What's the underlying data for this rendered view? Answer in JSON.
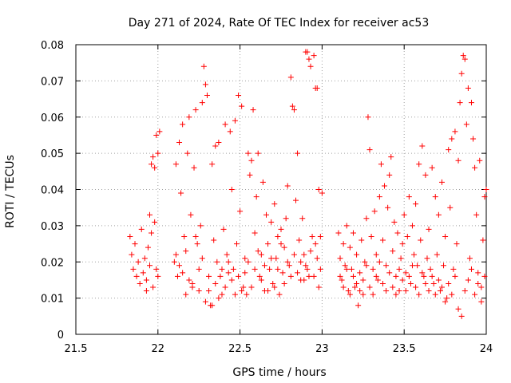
{
  "chart_data": {
    "type": "scatter",
    "title": "Day 271 of 2024, Rate Of TEC Index for receiver ac53",
    "xlabel": "GPS time / hours",
    "ylabel": "ROTI / TECUs",
    "xlim": [
      21.5,
      24
    ],
    "ylim": [
      0,
      0.08
    ],
    "x_ticks": [
      21.5,
      22,
      22.5,
      23,
      23.5,
      24
    ],
    "x_tick_labels": [
      "21.5",
      "22",
      "22.5",
      "23",
      "23.5",
      "24"
    ],
    "y_ticks": [
      0,
      0.01,
      0.02,
      0.03,
      0.04,
      0.05,
      0.06,
      0.07,
      0.08
    ],
    "y_tick_labels": [
      "0",
      "0.01",
      "0.02",
      "0.03",
      "0.04",
      "0.05",
      "0.06",
      "0.07",
      "0.08"
    ],
    "grid": true,
    "marker": "+",
    "color": "#ff0000",
    "series": [
      {
        "name": "ROTI",
        "points": [
          [
            21.83,
            0.027
          ],
          [
            21.84,
            0.022
          ],
          [
            21.85,
            0.018
          ],
          [
            21.86,
            0.025
          ],
          [
            21.87,
            0.016
          ],
          [
            21.88,
            0.02
          ],
          [
            21.89,
            0.014
          ],
          [
            21.9,
            0.029
          ],
          [
            21.91,
            0.017
          ],
          [
            21.92,
            0.021
          ],
          [
            21.93,
            0.015
          ],
          [
            21.94,
            0.024
          ],
          [
            21.95,
            0.019
          ],
          [
            21.96,
            0.028
          ],
          [
            21.97,
            0.013
          ],
          [
            21.98,
            0.031
          ],
          [
            21.99,
            0.018
          ],
          [
            22.0,
            0.016
          ],
          [
            21.96,
            0.047
          ],
          [
            21.97,
            0.049
          ],
          [
            21.98,
            0.046
          ],
          [
            21.99,
            0.055
          ],
          [
            22.0,
            0.05
          ],
          [
            22.01,
            0.056
          ],
          [
            21.95,
            0.033
          ],
          [
            21.93,
            0.012
          ],
          [
            22.1,
            0.02
          ],
          [
            22.11,
            0.047
          ],
          [
            22.12,
            0.016
          ],
          [
            22.13,
            0.053
          ],
          [
            22.14,
            0.039
          ],
          [
            22.15,
            0.058
          ],
          [
            22.16,
            0.027
          ],
          [
            22.17,
            0.011
          ],
          [
            22.18,
            0.05
          ],
          [
            22.19,
            0.06
          ],
          [
            22.2,
            0.033
          ],
          [
            22.21,
            0.014
          ],
          [
            22.22,
            0.046
          ],
          [
            22.23,
            0.062
          ],
          [
            22.24,
            0.025
          ],
          [
            22.25,
            0.018
          ],
          [
            22.26,
            0.03
          ],
          [
            22.27,
            0.064
          ],
          [
            22.28,
            0.074
          ],
          [
            22.29,
            0.069
          ],
          [
            22.3,
            0.066
          ],
          [
            22.31,
            0.012
          ],
          [
            22.32,
            0.008
          ],
          [
            22.33,
            0.047
          ],
          [
            22.34,
            0.026
          ],
          [
            22.35,
            0.052
          ],
          [
            22.36,
            0.02
          ],
          [
            22.37,
            0.053
          ],
          [
            22.38,
            0.016
          ],
          [
            22.39,
            0.011
          ],
          [
            22.4,
            0.029
          ],
          [
            22.41,
            0.058
          ],
          [
            22.42,
            0.022
          ],
          [
            22.43,
            0.017
          ],
          [
            22.44,
            0.056
          ],
          [
            22.45,
            0.04
          ],
          [
            22.46,
            0.018
          ],
          [
            22.47,
            0.059
          ],
          [
            22.48,
            0.025
          ],
          [
            22.49,
            0.066
          ],
          [
            22.5,
            0.034
          ],
          [
            22.51,
            0.063
          ],
          [
            22.52,
            0.013
          ],
          [
            22.53,
            0.021
          ],
          [
            22.54,
            0.011
          ],
          [
            22.55,
            0.05
          ],
          [
            22.56,
            0.044
          ],
          [
            22.57,
            0.048
          ],
          [
            22.58,
            0.062
          ],
          [
            22.59,
            0.028
          ],
          [
            22.6,
            0.038
          ],
          [
            22.61,
            0.05
          ],
          [
            22.62,
            0.016
          ],
          [
            22.63,
            0.022
          ],
          [
            22.64,
            0.042
          ],
          [
            22.65,
            0.012
          ],
          [
            22.66,
            0.033
          ],
          [
            22.67,
            0.025
          ],
          [
            22.68,
            0.018
          ],
          [
            22.69,
            0.031
          ],
          [
            22.7,
            0.014
          ],
          [
            22.71,
            0.036
          ],
          [
            22.72,
            0.021
          ],
          [
            22.73,
            0.027
          ],
          [
            22.74,
            0.011
          ],
          [
            22.75,
            0.029
          ],
          [
            22.76,
            0.017
          ],
          [
            22.77,
            0.024
          ],
          [
            22.78,
            0.032
          ],
          [
            22.79,
            0.041
          ],
          [
            22.8,
            0.019
          ],
          [
            22.81,
            0.071
          ],
          [
            22.82,
            0.063
          ],
          [
            22.83,
            0.062
          ],
          [
            22.84,
            0.037
          ],
          [
            22.85,
            0.05
          ],
          [
            22.86,
            0.026
          ],
          [
            22.87,
            0.015
          ],
          [
            22.88,
            0.032
          ],
          [
            22.89,
            0.022
          ],
          [
            22.9,
            0.078
          ],
          [
            22.91,
            0.078
          ],
          [
            22.92,
            0.076
          ],
          [
            22.93,
            0.074
          ],
          [
            22.94,
            0.027
          ],
          [
            22.95,
            0.077
          ],
          [
            22.96,
            0.068
          ],
          [
            22.97,
            0.068
          ],
          [
            22.98,
            0.04
          ],
          [
            22.99,
            0.018
          ],
          [
            23.0,
            0.039
          ],
          [
            22.96,
            0.025
          ],
          [
            22.98,
            0.013
          ],
          [
            22.97,
            0.021
          ],
          [
            22.99,
            0.027
          ],
          [
            22.92,
            0.016
          ],
          [
            22.9,
            0.019
          ],
          [
            22.11,
            0.022
          ],
          [
            22.13,
            0.019
          ],
          [
            22.15,
            0.017
          ],
          [
            22.17,
            0.023
          ],
          [
            22.19,
            0.015
          ],
          [
            22.21,
            0.013
          ],
          [
            22.23,
            0.027
          ],
          [
            22.25,
            0.012
          ],
          [
            22.27,
            0.021
          ],
          [
            22.29,
            0.009
          ],
          [
            22.31,
            0.016
          ],
          [
            22.33,
            0.008
          ],
          [
            22.35,
            0.014
          ],
          [
            22.37,
            0.01
          ],
          [
            22.39,
            0.018
          ],
          [
            22.41,
            0.013
          ],
          [
            22.43,
            0.02
          ],
          [
            22.45,
            0.015
          ],
          [
            22.47,
            0.011
          ],
          [
            22.49,
            0.016
          ],
          [
            22.51,
            0.012
          ],
          [
            22.53,
            0.017
          ],
          [
            22.55,
            0.02
          ],
          [
            22.57,
            0.013
          ],
          [
            22.59,
            0.018
          ],
          [
            22.61,
            0.023
          ],
          [
            22.63,
            0.015
          ],
          [
            22.65,
            0.019
          ],
          [
            22.67,
            0.012
          ],
          [
            22.69,
            0.021
          ],
          [
            22.71,
            0.013
          ],
          [
            22.73,
            0.018
          ],
          [
            22.75,
            0.025
          ],
          [
            22.77,
            0.014
          ],
          [
            22.79,
            0.02
          ],
          [
            22.81,
            0.016
          ],
          [
            22.83,
            0.022
          ],
          [
            22.85,
            0.017
          ],
          [
            22.87,
            0.02
          ],
          [
            22.89,
            0.015
          ],
          [
            22.91,
            0.018
          ],
          [
            22.93,
            0.023
          ],
          [
            22.95,
            0.016
          ],
          [
            23.1,
            0.028
          ],
          [
            23.11,
            0.021
          ],
          [
            23.12,
            0.015
          ],
          [
            23.13,
            0.025
          ],
          [
            23.14,
            0.019
          ],
          [
            23.15,
            0.03
          ],
          [
            23.16,
            0.012
          ],
          [
            23.17,
            0.024
          ],
          [
            23.18,
            0.018
          ],
          [
            23.19,
            0.028
          ],
          [
            23.2,
            0.013
          ],
          [
            23.21,
            0.022
          ],
          [
            23.22,
            0.008
          ],
          [
            23.23,
            0.017
          ],
          [
            23.24,
            0.026
          ],
          [
            23.25,
            0.011
          ],
          [
            23.26,
            0.02
          ],
          [
            23.27,
            0.032
          ],
          [
            23.28,
            0.06
          ],
          [
            23.29,
            0.051
          ],
          [
            23.3,
            0.027
          ],
          [
            23.31,
            0.018
          ],
          [
            23.32,
            0.034
          ],
          [
            23.33,
            0.022
          ],
          [
            23.34,
            0.015
          ],
          [
            23.35,
            0.038
          ],
          [
            23.36,
            0.047
          ],
          [
            23.37,
            0.026
          ],
          [
            23.38,
            0.041
          ],
          [
            23.39,
            0.019
          ],
          [
            23.4,
            0.035
          ],
          [
            23.41,
            0.044
          ],
          [
            23.42,
            0.049
          ],
          [
            23.43,
            0.023
          ],
          [
            23.44,
            0.031
          ],
          [
            23.45,
            0.016
          ],
          [
            23.46,
            0.028
          ],
          [
            23.47,
            0.012
          ],
          [
            23.48,
            0.021
          ],
          [
            23.49,
            0.025
          ],
          [
            23.5,
            0.033
          ],
          [
            23.51,
            0.017
          ],
          [
            23.52,
            0.027
          ],
          [
            23.53,
            0.038
          ],
          [
            23.54,
            0.014
          ],
          [
            23.55,
            0.03
          ],
          [
            23.56,
            0.022
          ],
          [
            23.57,
            0.036
          ],
          [
            23.58,
            0.019
          ],
          [
            23.59,
            0.047
          ],
          [
            23.6,
            0.026
          ],
          [
            23.61,
            0.052
          ],
          [
            23.62,
            0.016
          ],
          [
            23.63,
            0.044
          ],
          [
            23.64,
            0.021
          ],
          [
            23.65,
            0.029
          ],
          [
            23.66,
            0.018
          ],
          [
            23.67,
            0.046
          ],
          [
            23.68,
            0.014
          ],
          [
            23.69,
            0.038
          ],
          [
            23.7,
            0.022
          ],
          [
            23.71,
            0.033
          ],
          [
            23.72,
            0.012
          ],
          [
            23.73,
            0.042
          ],
          [
            23.74,
            0.019
          ],
          [
            23.75,
            0.027
          ],
          [
            23.76,
            0.01
          ],
          [
            23.77,
            0.051
          ],
          [
            23.78,
            0.035
          ],
          [
            23.79,
            0.054
          ],
          [
            23.8,
            0.018
          ],
          [
            23.81,
            0.056
          ],
          [
            23.82,
            0.025
          ],
          [
            23.83,
            0.048
          ],
          [
            23.84,
            0.064
          ],
          [
            23.85,
            0.072
          ],
          [
            23.86,
            0.077
          ],
          [
            23.87,
            0.076
          ],
          [
            23.88,
            0.058
          ],
          [
            23.89,
            0.068
          ],
          [
            23.9,
            0.021
          ],
          [
            23.91,
            0.064
          ],
          [
            23.92,
            0.054
          ],
          [
            23.93,
            0.046
          ],
          [
            23.94,
            0.033
          ],
          [
            23.95,
            0.017
          ],
          [
            23.96,
            0.048
          ],
          [
            23.97,
            0.013
          ],
          [
            23.98,
            0.026
          ],
          [
            23.99,
            0.038
          ],
          [
            24.0,
            0.04
          ],
          [
            23.11,
            0.016
          ],
          [
            23.13,
            0.013
          ],
          [
            23.15,
            0.018
          ],
          [
            23.17,
            0.011
          ],
          [
            23.19,
            0.016
          ],
          [
            23.21,
            0.014
          ],
          [
            23.23,
            0.012
          ],
          [
            23.25,
            0.015
          ],
          [
            23.27,
            0.019
          ],
          [
            23.29,
            0.013
          ],
          [
            23.31,
            0.011
          ],
          [
            23.33,
            0.016
          ],
          [
            23.35,
            0.02
          ],
          [
            23.37,
            0.014
          ],
          [
            23.39,
            0.012
          ],
          [
            23.41,
            0.017
          ],
          [
            23.43,
            0.013
          ],
          [
            23.45,
            0.011
          ],
          [
            23.47,
            0.018
          ],
          [
            23.49,
            0.015
          ],
          [
            23.51,
            0.012
          ],
          [
            23.53,
            0.016
          ],
          [
            23.55,
            0.019
          ],
          [
            23.57,
            0.013
          ],
          [
            23.59,
            0.011
          ],
          [
            23.61,
            0.017
          ],
          [
            23.63,
            0.014
          ],
          [
            23.65,
            0.012
          ],
          [
            23.67,
            0.016
          ],
          [
            23.69,
            0.011
          ],
          [
            23.71,
            0.015
          ],
          [
            23.73,
            0.013
          ],
          [
            23.75,
            0.009
          ],
          [
            23.77,
            0.014
          ],
          [
            23.79,
            0.011
          ],
          [
            23.81,
            0.016
          ],
          [
            23.83,
            0.007
          ],
          [
            23.85,
            0.005
          ],
          [
            23.87,
            0.012
          ],
          [
            23.89,
            0.015
          ],
          [
            23.91,
            0.018
          ],
          [
            23.93,
            0.011
          ],
          [
            23.95,
            0.014
          ],
          [
            23.97,
            0.009
          ],
          [
            23.99,
            0.016
          ]
        ]
      }
    ]
  }
}
